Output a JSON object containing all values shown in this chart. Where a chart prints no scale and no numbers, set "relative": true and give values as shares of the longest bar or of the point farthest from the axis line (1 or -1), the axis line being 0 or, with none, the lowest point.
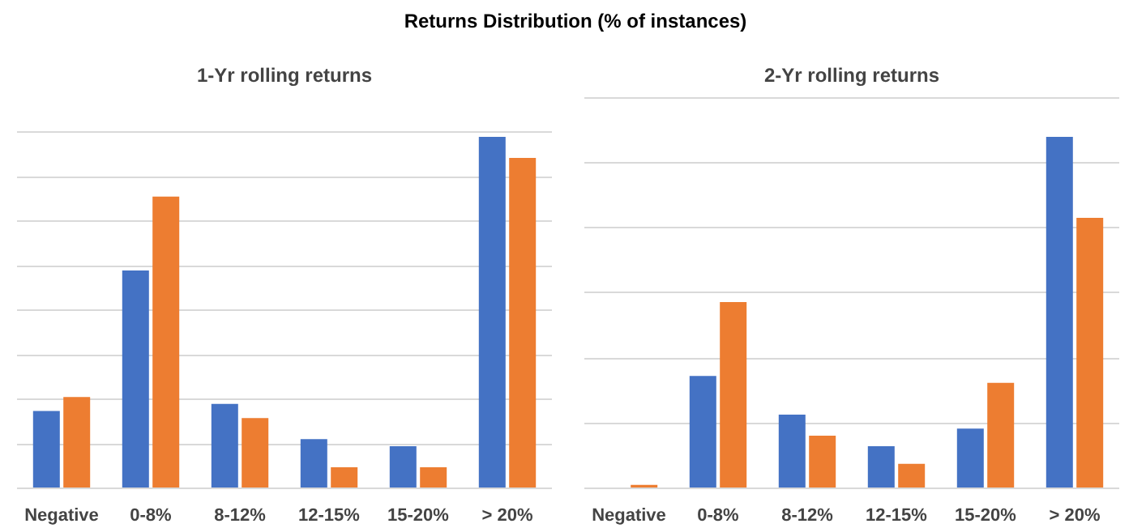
{
  "chart_data": [
    {
      "type": "bar",
      "title": "1-Yr rolling returns",
      "annotations": [
        "Returns Distribution (% of instances)"
      ],
      "relative": true,
      "grid": "y",
      "categories": [
        "Negative",
        "0-8%",
        "8-12%",
        "12-15%",
        "15-20%",
        "> 20%"
      ],
      "series": [
        {
          "color": "#4472c4",
          "values": [
            0.22,
            0.62,
            0.24,
            0.14,
            0.12,
            1
          ]
        },
        {
          "color": "#ed7d31",
          "values": [
            0.26,
            0.83,
            0.2,
            0.06,
            0.06,
            0.94
          ]
        }
      ]
    },
    {
      "type": "bar",
      "title": "2-Yr rolling returns",
      "relative": true,
      "grid": "y",
      "categories": [
        "Negative",
        "0-8%",
        "8-12%",
        "12-15%",
        "15-20%",
        "> 20%"
      ],
      "series": [
        {
          "color": "#4472c4",
          "values": [
            0,
            0.32,
            0.21,
            0.12,
            0.17,
            1
          ]
        },
        {
          "color": "#ed7d31",
          "values": [
            0.01,
            0.53,
            0.15,
            0.07,
            0.3,
            0.77
          ]
        }
      ]
    }
  ]
}
